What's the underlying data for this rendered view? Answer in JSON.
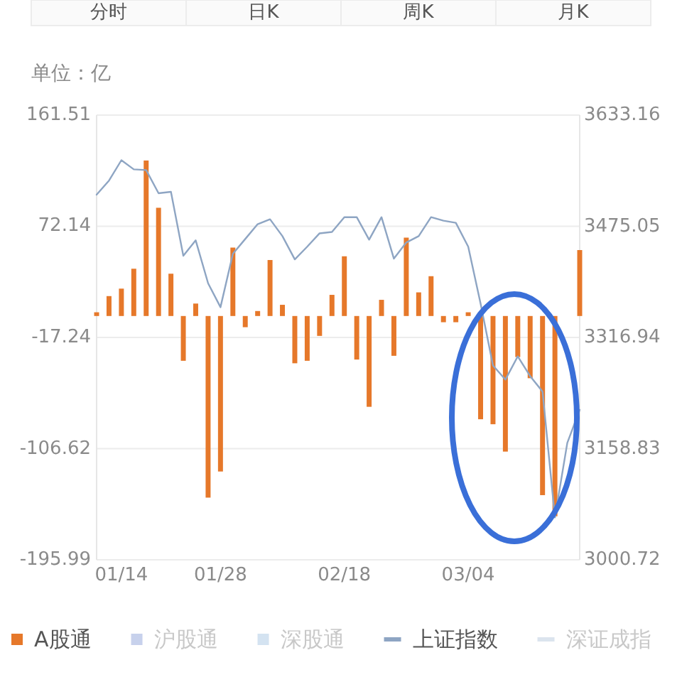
{
  "chart_data": {
    "type": "bar",
    "ylabel": "单位：亿",
    "annotations": [
      "分时",
      "日K",
      "周K",
      "月K"
    ],
    "categories": [
      null,
      null,
      "01/14",
      null,
      null,
      null,
      null,
      null,
      null,
      null,
      "01/28",
      null,
      null,
      null,
      null,
      null,
      null,
      null,
      null,
      null,
      "02/18",
      null,
      null,
      null,
      null,
      null,
      null,
      null,
      null,
      null,
      "03/04",
      null,
      null,
      null,
      null,
      null,
      null,
      null,
      null,
      null
    ],
    "ylim": [
      -195.99,
      161.51
    ],
    "yticks": [
      161.51,
      72.14,
      -17.24,
      -106.62,
      -195.99
    ],
    "y2lim": [
      3000.72,
      3633.16
    ],
    "y2ticks": [
      3633.16,
      3475.05,
      3316.94,
      3158.83,
      3000.72
    ],
    "grid": "y",
    "legend": "bottom",
    "series": [
      {
        "name": "A股通",
        "color": "#e6782a",
        "values": [
          3,
          16,
          22,
          38,
          125,
          87,
          34,
          -36,
          10,
          -146,
          -125,
          55,
          -9,
          4,
          45,
          9,
          -38,
          -36,
          -16,
          17,
          48,
          -35,
          -73,
          13,
          -32,
          63,
          19,
          32,
          -5,
          -5,
          3,
          -83,
          -87,
          -109,
          -33,
          -50,
          -144,
          -161,
          null,
          53
        ]
      },
      {
        "name": "沪股通",
        "color": "#c7d1ec",
        "values": [
          null,
          null,
          null,
          null,
          null,
          null,
          null,
          null,
          null,
          null,
          null,
          null,
          null,
          null,
          null,
          null,
          null,
          null,
          null,
          null,
          null,
          null,
          null,
          null,
          null,
          null,
          null,
          null,
          null,
          null,
          null,
          null,
          null,
          null,
          null,
          null,
          null,
          null,
          null,
          null
        ]
      },
      {
        "name": "深股通",
        "color": "#d4e3f1",
        "values": [
          null,
          null,
          null,
          null,
          null,
          null,
          null,
          null,
          null,
          null,
          null,
          null,
          null,
          null,
          null,
          null,
          null,
          null,
          null,
          null,
          null,
          null,
          null,
          null,
          null,
          null,
          null,
          null,
          null,
          null,
          null,
          null,
          null,
          null,
          null,
          null,
          null,
          null,
          null,
          null
        ]
      },
      {
        "name": "上证指数",
        "type": "line",
        "axis": "y2",
        "color": "#8ea5c3",
        "values": [
          3520,
          3540,
          3569,
          3556,
          3555,
          3522,
          3524,
          3433,
          3455,
          3394,
          3360,
          3436,
          3457,
          3478,
          3485,
          3461,
          3428,
          3446,
          3465,
          3467,
          3488,
          3488,
          3456,
          3488,
          3429,
          3452,
          3461,
          3488,
          3483,
          3480,
          3446,
          3365,
          3277,
          3257,
          3290,
          3262,
          3240,
          3061,
          3167,
          3214
        ]
      },
      {
        "name": "深证成指",
        "type": "line",
        "axis": "y2",
        "color": "#dbe4ee",
        "values": [
          null,
          null,
          null,
          null,
          null,
          null,
          null,
          null,
          null,
          null,
          null,
          null,
          null,
          null,
          null,
          null,
          null,
          null,
          null,
          null,
          null,
          null,
          null,
          null,
          null,
          null,
          null,
          null,
          null,
          null,
          null,
          null,
          null,
          null,
          null,
          null,
          null,
          null,
          null,
          null
        ]
      }
    ]
  }
}
